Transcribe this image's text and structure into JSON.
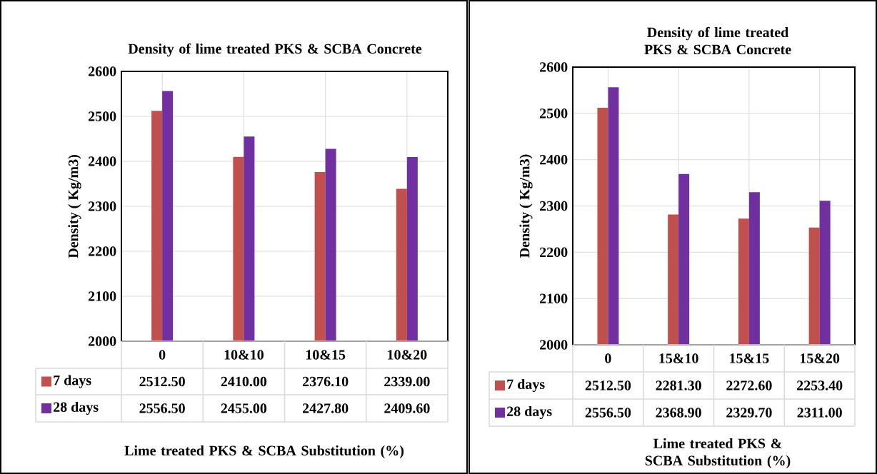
{
  "chart_data": [
    {
      "type": "bar",
      "title": "Density of lime treated PKS & SCBA Concrete",
      "ylabel": "Density ( Kg/m3)",
      "xlabel": "Lime treated PKS & SCBA Substitution (%)",
      "categories": [
        "0",
        "10&10",
        "10&15",
        "10&20"
      ],
      "series": [
        {
          "name": "7 days",
          "color": "#c0504d",
          "values": [
            2512.5,
            2410.0,
            2376.1,
            2339.0
          ],
          "value_labels": [
            "2512.50",
            "2410.00",
            "2376.10",
            "2339.00"
          ]
        },
        {
          "name": "28 days",
          "color": "#7030a0",
          "values": [
            2556.5,
            2455.0,
            2427.8,
            2409.6
          ],
          "value_labels": [
            "2556.50",
            "2455.00",
            "2427.80",
            "2409.60"
          ]
        }
      ],
      "ylim": [
        2000,
        2600
      ],
      "yticks": [
        2000,
        2100,
        2200,
        2300,
        2400,
        2500,
        2600
      ],
      "grid": true,
      "legend": "bottom",
      "tick_labels": "y"
    },
    {
      "type": "bar",
      "title": "Density of lime treated PKS & SCBA Concrete",
      "ylabel": "Density ( Kg/m3)",
      "xlabel": "Lime treated PKS & SCBA Substitution (%)",
      "categories": [
        "0",
        "15&10",
        "15&15",
        "15&20"
      ],
      "series": [
        {
          "name": "7 days",
          "color": "#c0504d",
          "values": [
            2512.5,
            2281.3,
            2272.6,
            2253.4
          ],
          "value_labels": [
            "2512.50",
            "2281.30",
            "2272.60",
            "2253.40"
          ]
        },
        {
          "name": "28 days",
          "color": "#7030a0",
          "values": [
            2556.5,
            2368.9,
            2329.7,
            2311.0
          ],
          "value_labels": [
            "2556.50",
            "2368.90",
            "2329.70",
            "2311.00"
          ]
        }
      ],
      "ylim": [
        2000,
        2600
      ],
      "yticks": [
        2000,
        2100,
        2200,
        2300,
        2400,
        2500,
        2600
      ],
      "grid": true,
      "legend": "bottom",
      "tick_labels": "y"
    }
  ]
}
